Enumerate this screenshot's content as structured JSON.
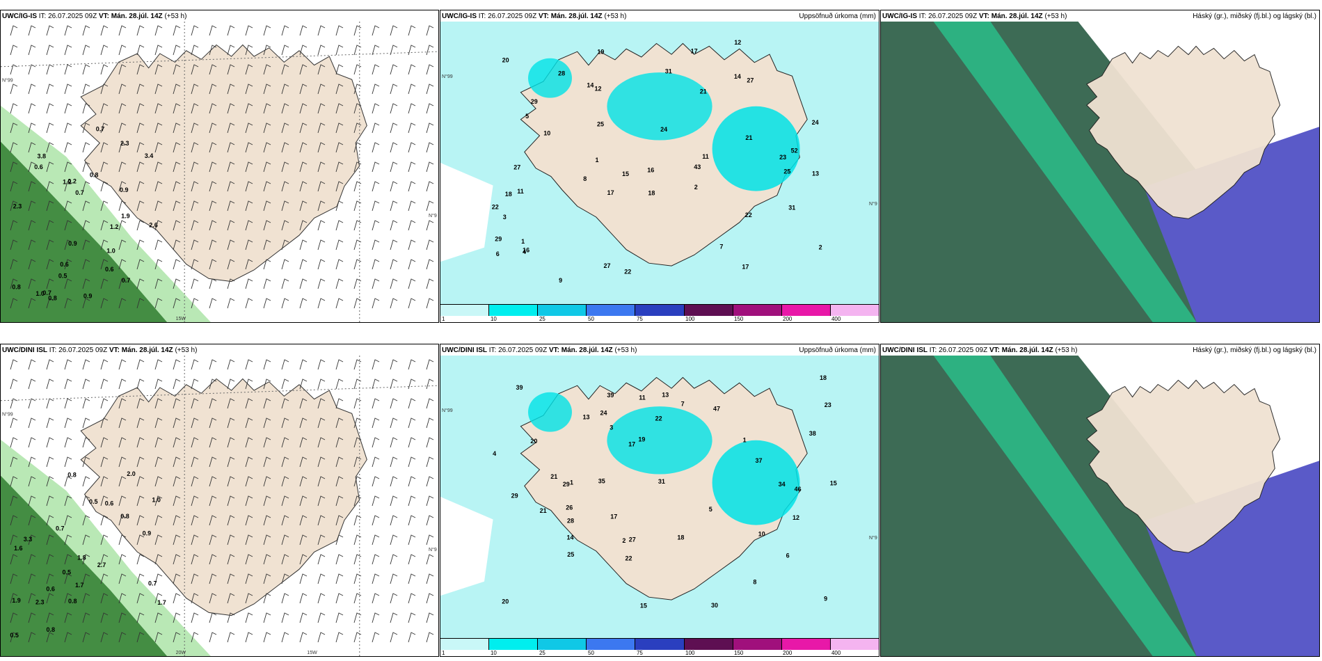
{
  "panels": [
    {
      "id": "ig-wind",
      "model": "UWC/IG-IS",
      "it_label": "IT: 26.07.2025 09Z",
      "vt_label": "VT: Mán. 28.júl. 14Z",
      "lead": "(+53 h)",
      "right_title": "",
      "grid_labels": [
        "N°99",
        "N°9",
        "15W"
      ],
      "values": [
        "0.7",
        "0.9",
        "0.8",
        "0.7",
        "0.9",
        "0.9",
        "1.0",
        "0.8",
        "0.7",
        "0.6",
        "0.5",
        "0.6",
        "1.2",
        "2.3",
        "1.9",
        "0.8",
        "0.7",
        "0.2",
        "2.3",
        "1.0",
        "2.6",
        "3.8",
        "3.4",
        "1.2",
        "0.6"
      ]
    },
    {
      "id": "ig-precip",
      "model": "UWC/IG-IS",
      "it_label": "IT: 26.07.2025 09Z",
      "vt_label": "VT: Mán. 28.júl. 14Z",
      "lead": "(+53 h)",
      "right_title": "Uppsöfnuð úrkoma (mm)",
      "grid_labels": [
        "N°99",
        "N°9"
      ],
      "values": [
        "3",
        "2",
        "1",
        "14",
        "16",
        "17",
        "21",
        "25",
        "17",
        "22",
        "24",
        "28",
        "11",
        "27",
        "13",
        "12",
        "10",
        "11",
        "17",
        "19",
        "22",
        "31",
        "29",
        "20",
        "43",
        "24",
        "31",
        "52",
        "18",
        "27",
        "29",
        "23",
        "27",
        "22",
        "21",
        "25",
        "12",
        "14",
        "15",
        "16",
        "18",
        "6",
        "5",
        "9",
        "4",
        "7",
        "8",
        "2",
        "1"
      ]
    },
    {
      "id": "ig-clouds",
      "model": "UWC/IG-IS",
      "it_label": "IT: 26.07.2025 09Z",
      "vt_label": "VT: Mán. 28.júl. 14Z",
      "lead": "(+53 h)",
      "right_title": "Háský (gr.), miðský (fj.bl.) og lágský (bl.)",
      "grid_labels": [],
      "values": []
    },
    {
      "id": "dini-wind",
      "model": "UWC/DINI ISL",
      "it_label": "IT: 26.07.2025 09Z",
      "vt_label": "VT: Mán. 28.júl. 14Z",
      "lead": "(+53 h)",
      "right_title": "",
      "grid_labels": [
        "N°99",
        "N°9",
        "20W",
        "15W"
      ],
      "values": [
        "0.8",
        "1.6",
        "1.8",
        "1.9",
        "1.7",
        "2.0",
        "1.7",
        "1.0",
        "0.7",
        "0.7",
        "0.9",
        "0.8",
        "2.3",
        "2.7",
        "0.5",
        "3.3",
        "0.8",
        "0.5",
        "0.5",
        "0.6",
        "0.8",
        "0.6"
      ]
    },
    {
      "id": "dini-precip",
      "model": "UWC/DINI ISL",
      "it_label": "IT: 26.07.2025 09Z",
      "vt_label": "VT: Mán. 28.júl. 14Z",
      "lead": "(+53 h)",
      "right_title": "Uppsöfnuð úrkoma (mm)",
      "grid_labels": [
        "N°99",
        "N°9"
      ],
      "values": [
        "7",
        "1",
        "13",
        "12",
        "17",
        "10",
        "29",
        "14",
        "21",
        "22",
        "20",
        "23",
        "15",
        "21",
        "18",
        "13",
        "15",
        "26",
        "24",
        "37",
        "39",
        "38",
        "46",
        "28",
        "22",
        "47",
        "29",
        "39",
        "27",
        "30",
        "35",
        "31",
        "34",
        "19",
        "25",
        "20",
        "8",
        "9",
        "6",
        "5",
        "4",
        "3",
        "2",
        "1",
        "18",
        "17",
        "11"
      ]
    },
    {
      "id": "dini-clouds",
      "model": "UWC/DINI ISL",
      "it_label": "IT: 26.07.2025 09Z",
      "vt_label": "VT: Mán. 28.júl. 14Z",
      "lead": "(+53 h)",
      "right_title": "Háský (gr.), miðský (fj.bl.) og lágský (bl.)",
      "grid_labels": [],
      "values": []
    }
  ],
  "colorbar": {
    "labels": [
      "1",
      "10",
      "25",
      "50",
      "75",
      "100",
      "150",
      "200",
      "400"
    ],
    "colors": [
      "#c9f7f7",
      "#00eeee",
      "#10c8e6",
      "#3c78f0",
      "#2a3fbf",
      "#5e0f52",
      "#a0107c",
      "#e818a8",
      "#f4b4f0"
    ]
  },
  "palette": {
    "land": "#f0e2d2",
    "precip_light": "#b8f4f4",
    "precip_mid": "#00e2e6",
    "wind_green": "#2f7d2f",
    "wind_light": "#b9e8b5",
    "cloud_dark": "#3d6b55",
    "cloud_green": "#28c890",
    "cloud_blue": "#5a5ac8"
  }
}
